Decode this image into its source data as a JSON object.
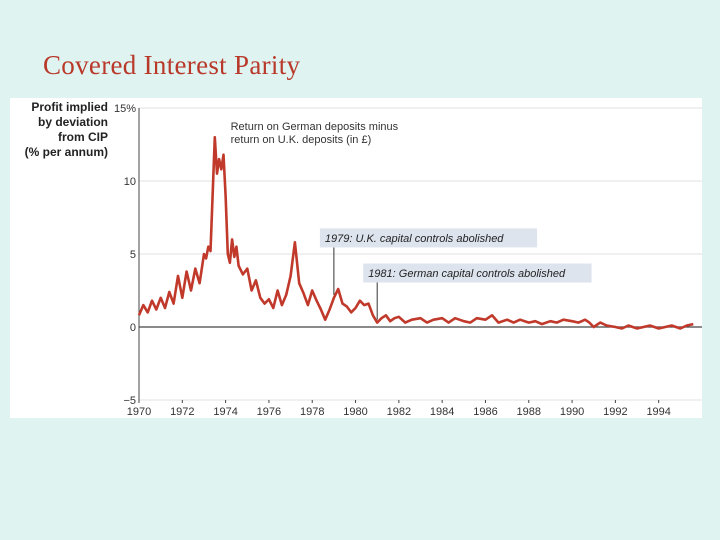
{
  "slide": {
    "title": "Covered Interest Parity"
  },
  "chart_data": {
    "type": "line",
    "title": "",
    "ylabel": "Profit implied\nby deviation\nfrom CIP\n(% per annum)",
    "xlabel": "",
    "xlim": [
      1970,
      1996
    ],
    "ylim": [
      -5,
      15
    ],
    "yticks": [
      -5,
      0,
      5,
      10,
      15
    ],
    "ytick_labels": [
      "−5",
      "0",
      "5",
      "10",
      "15%"
    ],
    "xticks": [
      1970,
      1972,
      1974,
      1976,
      1978,
      1980,
      1982,
      1984,
      1986,
      1988,
      1990,
      1992,
      1994
    ],
    "xtick_labels": [
      "1970",
      "1972",
      "1974",
      "1976",
      "1978",
      "1980",
      "1982",
      "1984",
      "1986",
      "1988",
      "1990",
      "1992",
      "1994"
    ],
    "grid": "horizontal",
    "colors": {
      "series": "#c0392b",
      "annotation_box": "#dde4ee"
    },
    "series": [
      {
        "name": "Return on German deposits minus return on U.K. deposits (in £)",
        "x": [
          1970.0,
          1970.2,
          1970.4,
          1970.6,
          1970.8,
          1971.0,
          1971.2,
          1971.4,
          1971.6,
          1971.8,
          1972.0,
          1972.2,
          1972.4,
          1972.6,
          1972.8,
          1973.0,
          1973.1,
          1973.2,
          1973.3,
          1973.4,
          1973.5,
          1973.6,
          1973.7,
          1973.8,
          1973.9,
          1974.0,
          1974.1,
          1974.2,
          1974.3,
          1974.4,
          1974.5,
          1974.6,
          1974.8,
          1975.0,
          1975.2,
          1975.4,
          1975.6,
          1975.8,
          1976.0,
          1976.2,
          1976.4,
          1976.6,
          1976.8,
          1977.0,
          1977.2,
          1977.4,
          1977.6,
          1977.8,
          1978.0,
          1978.2,
          1978.4,
          1978.6,
          1978.8,
          1979.0,
          1979.2,
          1979.4,
          1979.6,
          1979.8,
          1980.0,
          1980.2,
          1980.4,
          1980.6,
          1980.8,
          1981.0,
          1981.2,
          1981.4,
          1981.6,
          1981.8,
          1982.0,
          1982.3,
          1982.6,
          1983.0,
          1983.3,
          1983.6,
          1984.0,
          1984.3,
          1984.6,
          1985.0,
          1985.3,
          1985.6,
          1986.0,
          1986.3,
          1986.6,
          1987.0,
          1987.3,
          1987.6,
          1988.0,
          1988.3,
          1988.6,
          1989.0,
          1989.3,
          1989.6,
          1990.0,
          1990.3,
          1990.6,
          1990.8,
          1991.0,
          1991.3,
          1991.6,
          1992.0,
          1992.3,
          1992.6,
          1993.0,
          1993.3,
          1993.6,
          1994.0,
          1994.3,
          1994.6,
          1995.0,
          1995.3,
          1995.6
        ],
        "values": [
          0.8,
          1.5,
          1.0,
          1.8,
          1.2,
          2.0,
          1.3,
          2.4,
          1.6,
          3.5,
          2.0,
          3.8,
          2.5,
          4.0,
          3.0,
          5.0,
          4.7,
          5.5,
          5.2,
          9.0,
          13.0,
          10.5,
          11.5,
          10.8,
          11.8,
          9.0,
          5.0,
          4.4,
          6.0,
          4.8,
          5.5,
          4.2,
          3.6,
          4.0,
          2.5,
          3.2,
          2.0,
          1.6,
          1.9,
          1.3,
          2.5,
          1.5,
          2.2,
          3.5,
          5.8,
          3.0,
          2.3,
          1.5,
          2.5,
          1.8,
          1.2,
          0.5,
          1.2,
          2.0,
          2.6,
          1.6,
          1.4,
          1.0,
          1.3,
          1.8,
          1.5,
          1.6,
          0.8,
          0.3,
          0.6,
          0.8,
          0.4,
          0.6,
          0.7,
          0.3,
          0.5,
          0.6,
          0.3,
          0.5,
          0.6,
          0.3,
          0.6,
          0.4,
          0.3,
          0.6,
          0.5,
          0.8,
          0.3,
          0.5,
          0.3,
          0.5,
          0.3,
          0.4,
          0.2,
          0.4,
          0.3,
          0.5,
          0.4,
          0.3,
          0.5,
          0.3,
          0.0,
          0.3,
          0.1,
          0.0,
          -0.1,
          0.1,
          -0.1,
          0.0,
          0.1,
          -0.1,
          0.0,
          0.1,
          -0.1,
          0.1,
          0.2
        ]
      }
    ],
    "annotations": [
      {
        "text": "Return on German deposits minus\nreturn on U.K. deposits (in £)",
        "x": 1974,
        "y": 13.5,
        "boxed": false
      },
      {
        "text": "1979: U.K. capital controls abolished",
        "x": 1979.0,
        "y": 6.1,
        "boxed": true,
        "pointer_y": 2.2
      },
      {
        "text": "1981: German capital controls abolished",
        "x": 1981.0,
        "y": 3.7,
        "boxed": true,
        "pointer_y": 0.5
      }
    ]
  }
}
